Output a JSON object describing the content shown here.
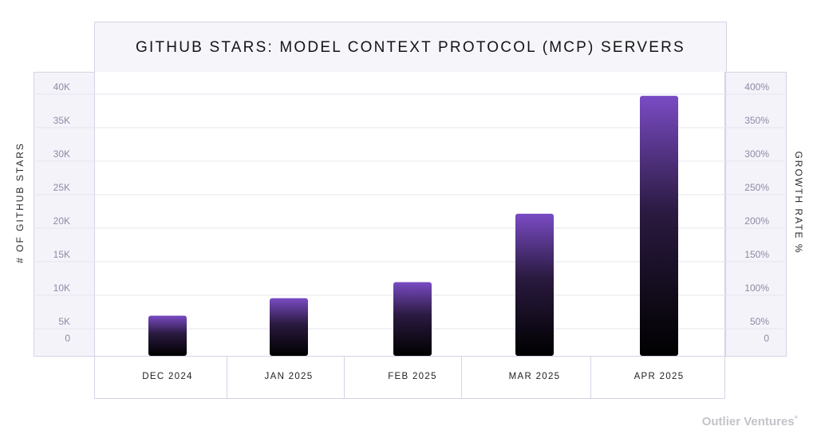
{
  "chart_data": {
    "type": "bar",
    "title": "GITHUB STARS: MODEL CONTEXT PROTOCOL (MCP) SERVERS",
    "categories": [
      "DEC 2024",
      "JAN 2025",
      "FEB 2025",
      "MAR 2025",
      "APR 2025"
    ],
    "values": [
      6000,
      8600,
      11000,
      21200,
      38800
    ],
    "ylabel": "# OF GITHUB STARS",
    "ylabel_right": "GROWTH RATE %",
    "ylim": [
      0,
      40000
    ],
    "yticks": [
      "0",
      "5K",
      "10K",
      "15K",
      "20K",
      "25K",
      "30K",
      "35K",
      "40K"
    ],
    "yticks_right": [
      "0",
      "50%",
      "100%",
      "150%",
      "200%",
      "250%",
      "300%",
      "350%",
      "400%"
    ],
    "bar_color_top": "#7a4bc4",
    "bar_color_bottom": "#000000",
    "grid": true
  },
  "brand": "Outlier Ventures",
  "brand_mark": "°"
}
